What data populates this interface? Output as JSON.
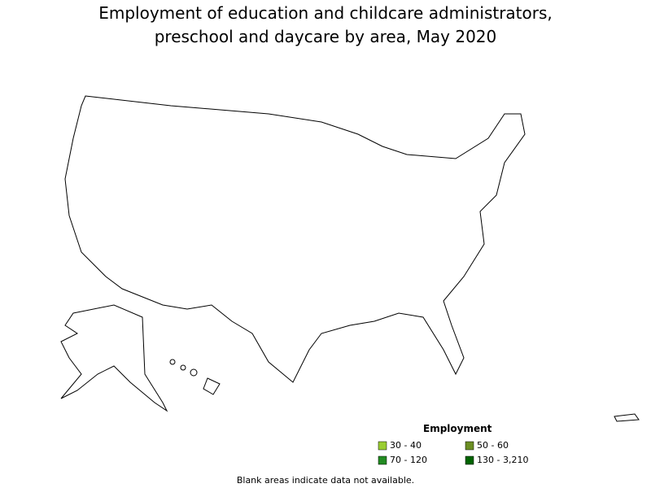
{
  "title": "Employment of education and childcare administrators, preschool and daycare by area, May 2020",
  "legend": {
    "title": "Employment",
    "items": [
      {
        "label": "30 - 40",
        "color": "#9acd32"
      },
      {
        "label": "50 - 60",
        "color": "#6b8e23"
      },
      {
        "label": "70 - 120",
        "color": "#228b22"
      },
      {
        "label": "130 - 3,210",
        "color": "#006400"
      }
    ]
  },
  "footnote": "Blank areas indicate data not available."
}
